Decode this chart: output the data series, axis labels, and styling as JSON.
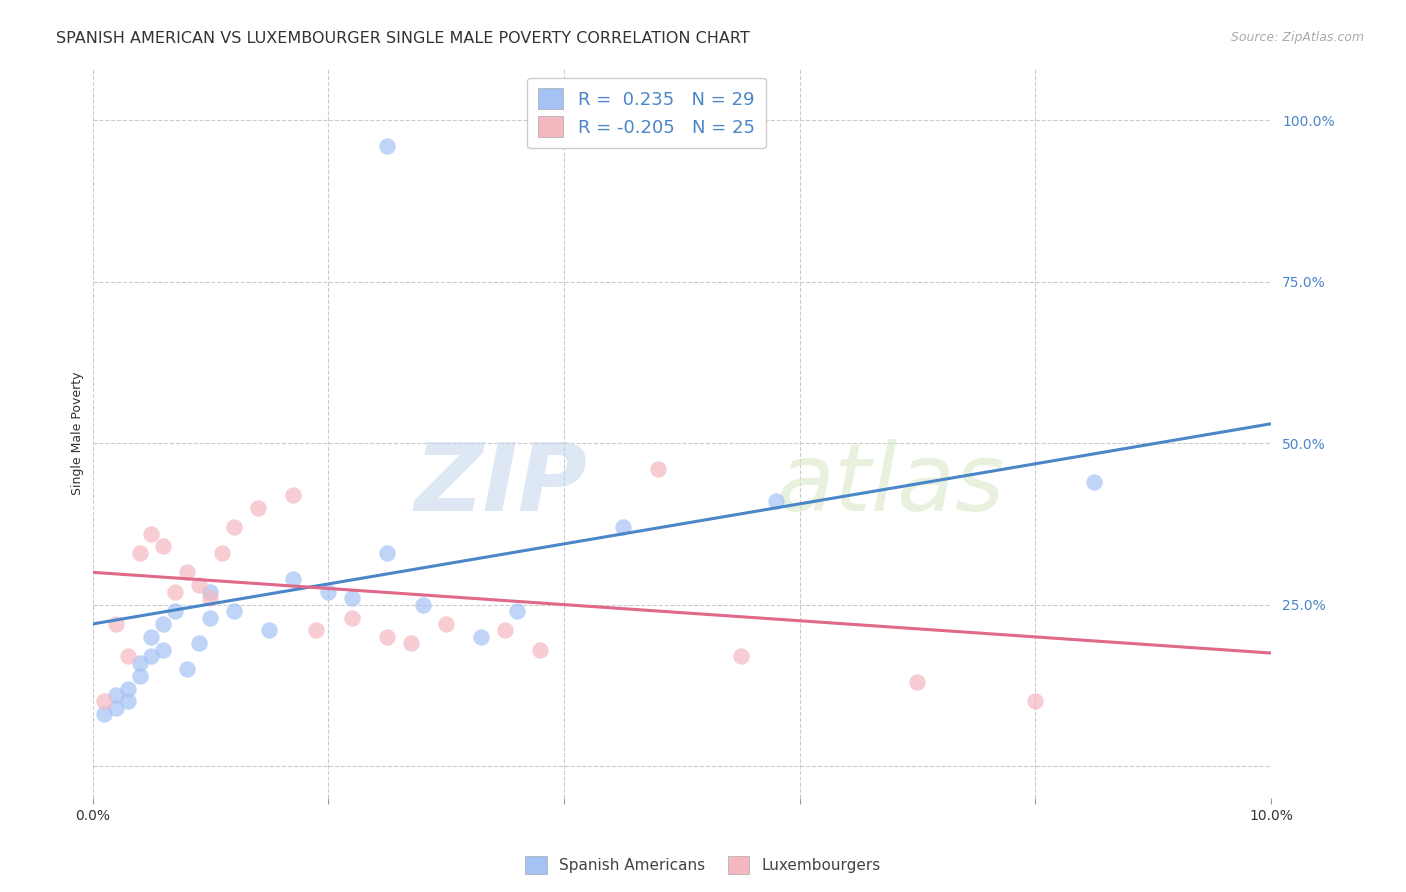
{
  "title": "SPANISH AMERICAN VS LUXEMBOURGER SINGLE MALE POVERTY CORRELATION CHART",
  "source": "Source: ZipAtlas.com",
  "ylabel": "Single Male Poverty",
  "xlim": [
    0.0,
    0.1
  ],
  "ylim": [
    -0.05,
    1.08
  ],
  "watermark_zip": "ZIP",
  "watermark_atlas": "atlas",
  "legend_blue_r": "R =  0.235",
  "legend_blue_n": "N = 29",
  "legend_pink_r": "R = -0.205",
  "legend_pink_n": "N = 25",
  "color_blue": "#a4c2f4",
  "color_pink": "#f4b8c1",
  "color_blue_line": "#4a86c8",
  "color_pink_line": "#e06888",
  "color_blue_tick": "#4a86c8",
  "blue_scatter_x": [
    0.001,
    0.002,
    0.002,
    0.003,
    0.003,
    0.004,
    0.004,
    0.005,
    0.005,
    0.006,
    0.006,
    0.007,
    0.008,
    0.009,
    0.01,
    0.01,
    0.012,
    0.015,
    0.017,
    0.02,
    0.022,
    0.025,
    0.025,
    0.028,
    0.033,
    0.036,
    0.045,
    0.058,
    0.085
  ],
  "blue_scatter_y": [
    0.08,
    0.09,
    0.11,
    0.1,
    0.12,
    0.14,
    0.16,
    0.17,
    0.2,
    0.18,
    0.22,
    0.24,
    0.15,
    0.19,
    0.23,
    0.27,
    0.24,
    0.21,
    0.29,
    0.27,
    0.26,
    0.33,
    0.96,
    0.25,
    0.2,
    0.24,
    0.37,
    0.41,
    0.44
  ],
  "pink_scatter_x": [
    0.001,
    0.002,
    0.003,
    0.004,
    0.005,
    0.006,
    0.007,
    0.008,
    0.009,
    0.01,
    0.011,
    0.012,
    0.014,
    0.017,
    0.019,
    0.022,
    0.025,
    0.027,
    0.03,
    0.035,
    0.038,
    0.048,
    0.055,
    0.07,
    0.08
  ],
  "pink_scatter_y": [
    0.1,
    0.22,
    0.17,
    0.33,
    0.36,
    0.34,
    0.27,
    0.3,
    0.28,
    0.26,
    0.33,
    0.37,
    0.4,
    0.42,
    0.21,
    0.23,
    0.2,
    0.19,
    0.22,
    0.21,
    0.18,
    0.46,
    0.17,
    0.13,
    0.1
  ],
  "blue_line_x": [
    0.0,
    0.1
  ],
  "blue_line_y": [
    0.22,
    0.53
  ],
  "pink_line_x": [
    0.0,
    0.1
  ],
  "pink_line_y": [
    0.3,
    0.175
  ],
  "grid_color": "#cccccc",
  "background_color": "#ffffff",
  "title_fontsize": 11.5,
  "label_fontsize": 9,
  "tick_fontsize": 10,
  "legend_fontsize": 13,
  "scatter_size": 140,
  "scatter_alpha": 0.7
}
